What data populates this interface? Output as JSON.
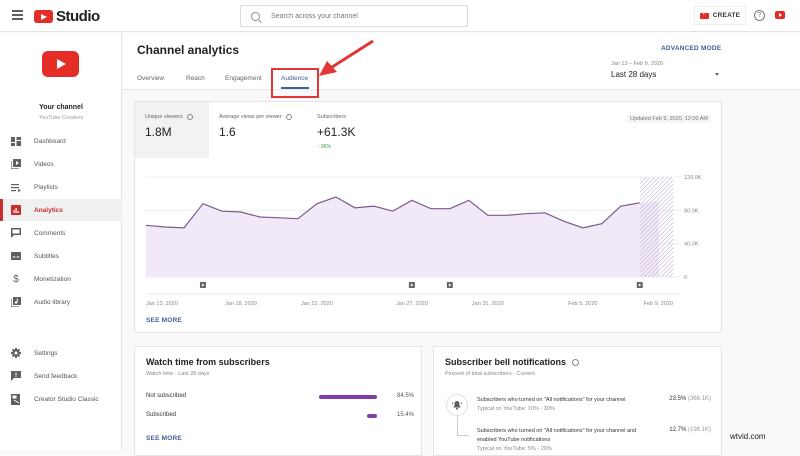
{
  "topbar": {
    "app_name": "Studio",
    "search_placeholder": "Search across your channel",
    "create_label": "CREATE",
    "help_glyph": "?"
  },
  "sidebar": {
    "channel_name": "Your channel",
    "channel_subtitle": "YouTube Creators",
    "items": [
      {
        "label": "Dashboard",
        "icon": "dashboard-icon",
        "active": false
      },
      {
        "label": "Videos",
        "icon": "videos-icon",
        "active": false
      },
      {
        "label": "Playlists",
        "icon": "playlists-icon",
        "active": false
      },
      {
        "label": "Analytics",
        "icon": "analytics-icon",
        "active": true
      },
      {
        "label": "Comments",
        "icon": "comments-icon",
        "active": false
      },
      {
        "label": "Subtitles",
        "icon": "subtitles-icon",
        "active": false
      },
      {
        "label": "Monetization",
        "icon": "monetization-icon",
        "active": false
      },
      {
        "label": "Audio library",
        "icon": "audio-library-icon",
        "active": false
      }
    ],
    "bottom_items": [
      {
        "label": "Settings",
        "icon": "settings-icon"
      },
      {
        "label": "Send feedback",
        "icon": "feedback-icon"
      },
      {
        "label": "Creator Studio Classic",
        "icon": "creator-studio-classic-icon"
      }
    ]
  },
  "header": {
    "title": "Channel analytics",
    "tabs": [
      {
        "label": "Overview",
        "active": false
      },
      {
        "label": "Reach",
        "active": false
      },
      {
        "label": "Engagement",
        "active": false
      },
      {
        "label": "Audience",
        "active": true
      }
    ],
    "advanced_mode": "ADVANCED MODE",
    "date_range_sub": "Jan 13 – Feb 9, 2020",
    "date_range_main": "Last 28 days"
  },
  "overview_card": {
    "kpis": [
      {
        "label": "Unique viewers",
        "value": "1.8M",
        "info": true
      },
      {
        "label": "Average views per viewer",
        "value": "1.6",
        "info": true
      },
      {
        "label": "Subscribers",
        "value": "+61.3K",
        "delta": "↑ 36%"
      }
    ],
    "updated": "Updated Feb 9, 2020, 12:00 AM",
    "see_more": "SEE MORE"
  },
  "chart_data": {
    "type": "area",
    "title": "Unique viewers",
    "x": [
      "Jan 13",
      "Jan 14",
      "Jan 15",
      "Jan 16",
      "Jan 17",
      "Jan 18",
      "Jan 19",
      "Jan 20",
      "Jan 21",
      "Jan 22",
      "Jan 23",
      "Jan 24",
      "Jan 25",
      "Jan 26",
      "Jan 27",
      "Jan 28",
      "Jan 29",
      "Jan 30",
      "Jan 31",
      "Feb 1",
      "Feb 2",
      "Feb 3",
      "Feb 4",
      "Feb 5",
      "Feb 6",
      "Feb 7",
      "Feb 8",
      "Feb 9"
    ],
    "values": [
      62000,
      60000,
      59000,
      88000,
      79000,
      78000,
      72000,
      71000,
      70000,
      88000,
      96000,
      83000,
      85000,
      79000,
      92000,
      82000,
      82000,
      92000,
      74000,
      74000,
      76000,
      77000,
      67000,
      59000,
      64000,
      85000,
      89000,
      90000
    ],
    "x_tick_labels": [
      "Jan 13, 2020",
      "Jan 18, 2020",
      "Jan 22, 2020",
      "Jan 27, 2020",
      "Jan 31, 2020",
      "Feb 5, 2020",
      "Feb 9, 2020"
    ],
    "y_tick_labels": [
      "0",
      "40.0K",
      "80.0K",
      "120.0K"
    ],
    "ylim": [
      0,
      120000
    ],
    "y_axis_position": "right",
    "grid": true,
    "line_color": "#7b5a8c",
    "fill_color": "#f1e9f7",
    "partial_last_day": true,
    "event_markers": [
      "Jan 16",
      "Jan 27",
      "Jan 29",
      "Feb 8"
    ]
  },
  "watch_time_card": {
    "title": "Watch time from subscribers",
    "subtitle": "Watch time · Last 28 days",
    "rows": [
      {
        "label": "Not subscribed",
        "pct": "84.5%",
        "value": 84.5
      },
      {
        "label": "Subscribed",
        "pct": "15.4%",
        "value": 15.4
      }
    ],
    "bar_color": "#7e3ea6",
    "see_more": "SEE MORE"
  },
  "bell_card": {
    "title": "Subscriber bell notifications",
    "subtitle": "Percent of total subscribers · Current",
    "rows": [
      {
        "text": "Subscribers who turned on \"All notifications\" for your channel",
        "typical": "Typical on YouTube: 10% - 30%",
        "pct": "23.5%",
        "count": "(366.1K)"
      },
      {
        "text": "Subscribers who turned on \"All notifications\" for your channel and enabled YouTube notifications",
        "typical": "Typical on YouTube: 5% - 20%",
        "pct": "12.7%",
        "count": "(198.1K)"
      }
    ]
  },
  "watermark": "wtvid.com"
}
